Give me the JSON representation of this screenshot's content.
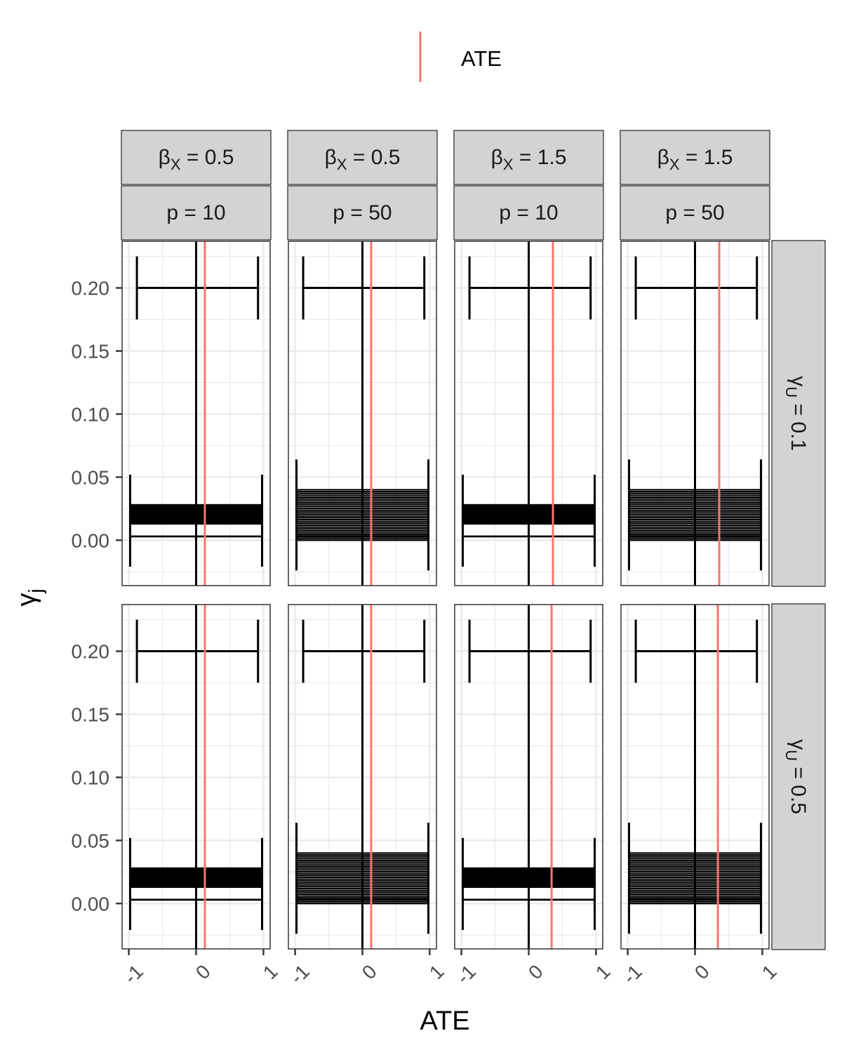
{
  "chart_data": {
    "type": "errorbar",
    "legend": {
      "position": "top",
      "entries": [
        {
          "label": "ATE",
          "color": "#F8766D"
        }
      ]
    },
    "axes": {
      "x_label": "ATE",
      "y_label": "γ",
      "y_label_sub": "j",
      "xlim": [
        -1.1,
        1.1
      ],
      "ylim": [
        -0.036,
        0.237
      ],
      "x_ticks": [
        -1,
        0,
        1
      ],
      "x_tick_labels": [
        "-1",
        "0",
        "1"
      ],
      "y_ticks": [
        0.0,
        0.05,
        0.1,
        0.15,
        0.2
      ],
      "y_tick_labels": [
        "0.00",
        "0.05",
        "0.10",
        "0.15",
        "0.20"
      ],
      "grid": true
    },
    "facet_columns": [
      {
        "beta_sym": "β",
        "beta_sub": "X",
        "beta_rest": " = 0.5",
        "p_label": "p = 10"
      },
      {
        "beta_sym": "β",
        "beta_sub": "X",
        "beta_rest": " = 0.5",
        "p_label": "p = 50"
      },
      {
        "beta_sym": "β",
        "beta_sub": "X",
        "beta_rest": " = 1.5",
        "p_label": "p = 10"
      },
      {
        "beta_sym": "β",
        "beta_sub": "X",
        "beta_rest": " = 1.5",
        "p_label": "p = 50"
      }
    ],
    "facet_rows": [
      {
        "sym": "γ",
        "sub": "U",
        "rest": " = 0.1"
      },
      {
        "sym": "γ",
        "sub": "U",
        "rest": " = 0.5"
      }
    ],
    "panels": [
      {
        "row": 0,
        "col": 0,
        "ate": 0.13,
        "point_estimate": 0.0,
        "ci_low": -0.98,
        "ci_high": 0.98,
        "ci_low_top": -0.88,
        "ci_high_top": 0.92,
        "gamma_top": 0.2,
        "gamma_min": 0.003,
        "gamma_band": [
          0.013,
          0.028
        ]
      },
      {
        "row": 0,
        "col": 1,
        "ate": 0.13,
        "point_estimate": 0.0,
        "ci_low": -0.98,
        "ci_high": 0.98,
        "ci_low_top": -0.88,
        "ci_high_top": 0.92,
        "gamma_top": 0.2,
        "gamma_min": 0.003,
        "gamma_band": [
          0.0,
          0.04
        ]
      },
      {
        "row": 0,
        "col": 2,
        "ate": 0.36,
        "point_estimate": 0.0,
        "ci_low": -0.98,
        "ci_high": 0.98,
        "ci_low_top": -0.88,
        "ci_high_top": 0.92,
        "gamma_top": 0.2,
        "gamma_min": 0.003,
        "gamma_band": [
          0.013,
          0.028
        ]
      },
      {
        "row": 0,
        "col": 3,
        "ate": 0.36,
        "point_estimate": 0.0,
        "ci_low": -0.98,
        "ci_high": 0.98,
        "ci_low_top": -0.88,
        "ci_high_top": 0.92,
        "gamma_top": 0.2,
        "gamma_min": 0.003,
        "gamma_band": [
          0.0,
          0.04
        ]
      },
      {
        "row": 1,
        "col": 0,
        "ate": 0.13,
        "point_estimate": 0.0,
        "ci_low": -0.98,
        "ci_high": 0.98,
        "ci_low_top": -0.88,
        "ci_high_top": 0.92,
        "gamma_top": 0.2,
        "gamma_min": 0.003,
        "gamma_band": [
          0.013,
          0.028
        ]
      },
      {
        "row": 1,
        "col": 1,
        "ate": 0.13,
        "point_estimate": 0.0,
        "ci_low": -0.98,
        "ci_high": 0.98,
        "ci_low_top": -0.88,
        "ci_high_top": 0.92,
        "gamma_top": 0.2,
        "gamma_min": 0.003,
        "gamma_band": [
          0.0,
          0.04
        ]
      },
      {
        "row": 1,
        "col": 2,
        "ate": 0.34,
        "point_estimate": 0.0,
        "ci_low": -0.98,
        "ci_high": 0.98,
        "ci_low_top": -0.88,
        "ci_high_top": 0.92,
        "gamma_top": 0.2,
        "gamma_min": 0.003,
        "gamma_band": [
          0.013,
          0.028
        ]
      },
      {
        "row": 1,
        "col": 3,
        "ate": 0.34,
        "point_estimate": 0.0,
        "ci_low": -0.98,
        "ci_high": 0.98,
        "ci_low_top": -0.88,
        "ci_high_top": 0.92,
        "gamma_top": 0.2,
        "gamma_min": 0.003,
        "gamma_band": [
          0.0,
          0.04
        ]
      }
    ]
  }
}
